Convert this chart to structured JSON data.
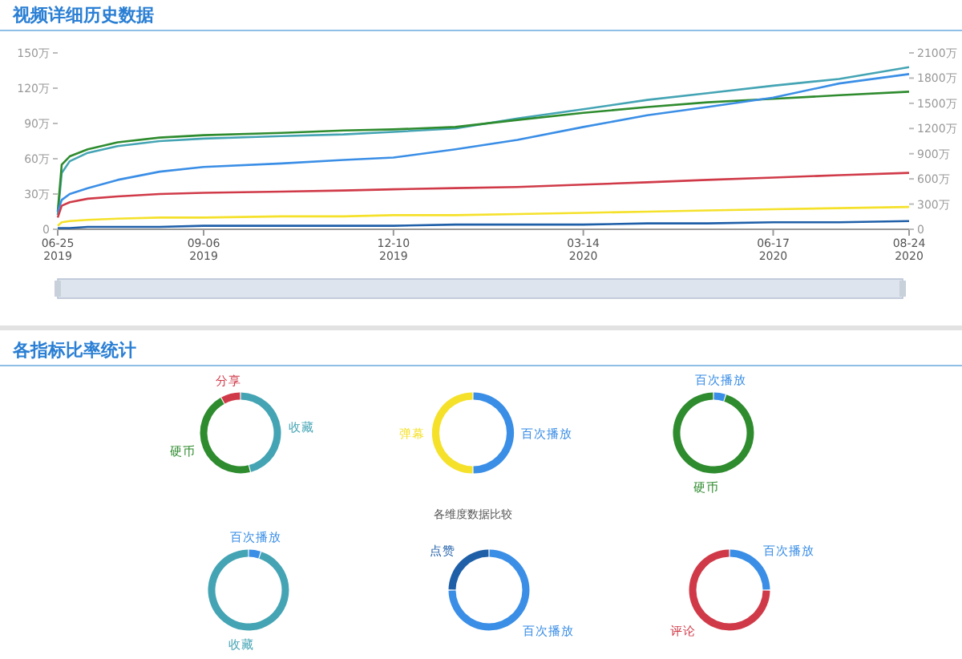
{
  "chart_data": [
    {
      "type": "line",
      "title": "视频详细历史数据",
      "x": [
        "2019-06-25",
        "2019-06-27",
        "2019-07-01",
        "2019-07-10",
        "2019-07-25",
        "2019-08-15",
        "2019-09-06",
        "2019-10-15",
        "2019-11-15",
        "2019-12-10",
        "2020-01-10",
        "2020-02-10",
        "2020-03-14",
        "2020-04-15",
        "2020-05-15",
        "2020-06-17",
        "2020-07-20",
        "2020-08-24"
      ],
      "series": [
        {
          "color": "#44a4b4",
          "axis": "y2",
          "values": [
            170,
            670,
            810,
            910,
            990,
            1050,
            1080,
            1110,
            1130,
            1160,
            1200,
            1320,
            1430,
            1540,
            1620,
            1710,
            1790,
            1930
          ]
        },
        {
          "color": "#2e8b2e",
          "values": [
            15,
            55,
            62,
            68,
            74,
            78,
            80,
            82,
            84,
            85,
            87,
            93,
            99,
            104,
            108,
            111,
            114,
            117
          ]
        },
        {
          "color": "#3a8ee6",
          "values": [
            15,
            25,
            30,
            35,
            42,
            49,
            53,
            56,
            59,
            61,
            68,
            76,
            87,
            97,
            104,
            112,
            124,
            132
          ]
        },
        {
          "color": "#d03a48",
          "values": [
            10,
            20,
            23,
            26,
            28,
            30,
            31,
            32,
            33,
            34,
            35,
            36,
            38,
            40,
            42,
            44,
            46,
            48
          ]
        },
        {
          "color": "#f5e12a",
          "values": [
            3,
            6,
            7,
            8,
            9,
            10,
            10,
            11,
            11,
            12,
            12,
            13,
            14,
            15,
            16,
            17,
            18,
            19
          ]
        },
        {
          "color": "#1f5fa8",
          "values": [
            1,
            1,
            1,
            2,
            2,
            2,
            3,
            3,
            3,
            3,
            4,
            4,
            4,
            5,
            5,
            6,
            6,
            7
          ]
        }
      ],
      "xlim": [
        "2019-06-25",
        "2020-08-24"
      ],
      "xticks": [
        {
          "value": "2019-06-25",
          "label": "06-25 2019"
        },
        {
          "value": "2019-09-06",
          "label": "09-06 2019"
        },
        {
          "value": "2019-12-10",
          "label": "12-10 2019"
        },
        {
          "value": "2020-03-14",
          "label": "03-14 2020"
        },
        {
          "value": "2020-06-17",
          "label": "06-17 2020"
        },
        {
          "value": "2020-08-24",
          "label": "08-24 2020"
        }
      ],
      "ylim": [
        0,
        150
      ],
      "yticks": [
        0,
        {
          "value": 30,
          "label": "30万"
        },
        {
          "value": 60,
          "label": "60万"
        },
        {
          "value": 90,
          "label": "90万"
        },
        {
          "value": 120,
          "label": "120万"
        },
        {
          "value": 150,
          "label": "150万"
        }
      ],
      "y2lim": [
        0,
        2100
      ],
      "y2ticks": [
        0,
        {
          "value": 300,
          "label": "300万"
        },
        {
          "value": 600,
          "label": "600万"
        },
        {
          "value": 900,
          "label": "900万"
        },
        {
          "value": 1200,
          "label": "1200万"
        },
        {
          "value": 1500,
          "label": "1500万"
        },
        {
          "value": 1800,
          "label": "1800万"
        },
        {
          "value": 2100,
          "label": "2100万"
        }
      ]
    },
    {
      "type": "donut",
      "title": "各指标比率统计",
      "categories": [
        "收藏",
        "硬币",
        "分享"
      ],
      "values": [
        46,
        46,
        8
      ],
      "colors": [
        "#44a4b4",
        "#2e8b2e",
        "#d03a48"
      ]
    },
    {
      "type": "donut",
      "title": "各维度数据比较",
      "categories": [
        "百次播放",
        "弹幕"
      ],
      "values": [
        50,
        50
      ],
      "colors": [
        "#3a8ee6",
        "#f5e12a"
      ]
    },
    {
      "type": "donut",
      "categories": [
        "百次播放",
        "硬币"
      ],
      "values": [
        5,
        95
      ],
      "colors": [
        "#3a8ee6",
        "#2e8b2e"
      ]
    },
    {
      "type": "donut",
      "categories": [
        "百次播放",
        "收藏"
      ],
      "values": [
        5,
        95
      ],
      "colors": [
        "#3a8ee6",
        "#44a4b4"
      ]
    },
    {
      "type": "donut",
      "categories": [
        "百次播放",
        "点赞"
      ],
      "values": [
        75,
        25
      ],
      "colors": [
        "#3a8ee6",
        "#1f5fa8"
      ]
    },
    {
      "type": "donut",
      "categories": [
        "百次播放",
        "评论"
      ],
      "values": [
        25,
        75
      ],
      "colors": [
        "#3a8ee6",
        "#d03a48"
      ]
    }
  ]
}
